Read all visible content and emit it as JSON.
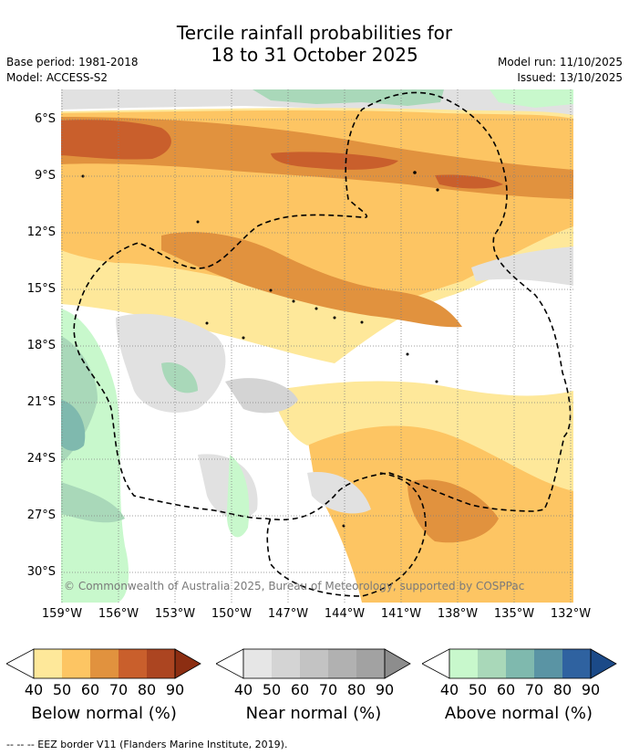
{
  "title_line1": "Tercile rainfall probabilities for",
  "title_line2": "18 to 31 October 2025",
  "meta_left": [
    "Base period: 1981-2018",
    "Model: ACCESS-S2"
  ],
  "meta_right": [
    "Model run: 11/10/2025",
    "Issued: 13/10/2025"
  ],
  "lat_labels": [
    "6°S",
    "9°S",
    "12°S",
    "15°S",
    "18°S",
    "21°S",
    "24°S",
    "27°S",
    "30°S"
  ],
  "lon_labels": [
    "159°W",
    "156°W",
    "153°W",
    "150°W",
    "147°W",
    "144°W",
    "141°W",
    "138°W",
    "135°W",
    "132°W"
  ],
  "copyright": "© Commonwealth of Australia 2025, Bureau of Meteorology, supported by COSPPac",
  "colorbars": [
    {
      "title": "Below normal (%)",
      "ticks": [
        "40",
        "50",
        "60",
        "70",
        "80",
        "90"
      ],
      "colors": [
        "#fee89a",
        "#fdc563",
        "#e1923e",
        "#c95f2c",
        "#ac4521"
      ],
      "tip": "#8c2e12"
    },
    {
      "title": "Near normal (%)",
      "ticks": [
        "40",
        "50",
        "60",
        "70",
        "80",
        "90"
      ],
      "colors": [
        "#e6e6e6",
        "#d4d4d4",
        "#c3c3c3",
        "#b1b1b1",
        "#a2a2a2"
      ],
      "tip": "#8d8d8d"
    },
    {
      "title": "Above normal (%)",
      "ticks": [
        "40",
        "50",
        "60",
        "70",
        "80",
        "90"
      ],
      "colors": [
        "#c8f8cc",
        "#a9d8b9",
        "#7fb9ae",
        "#5a94a4",
        "#2f62a0"
      ],
      "tip": "#1b4a88"
    }
  ],
  "footnote": "-- -- -- EEZ border V11 (Flanders Marine Institute, 2019)."
}
